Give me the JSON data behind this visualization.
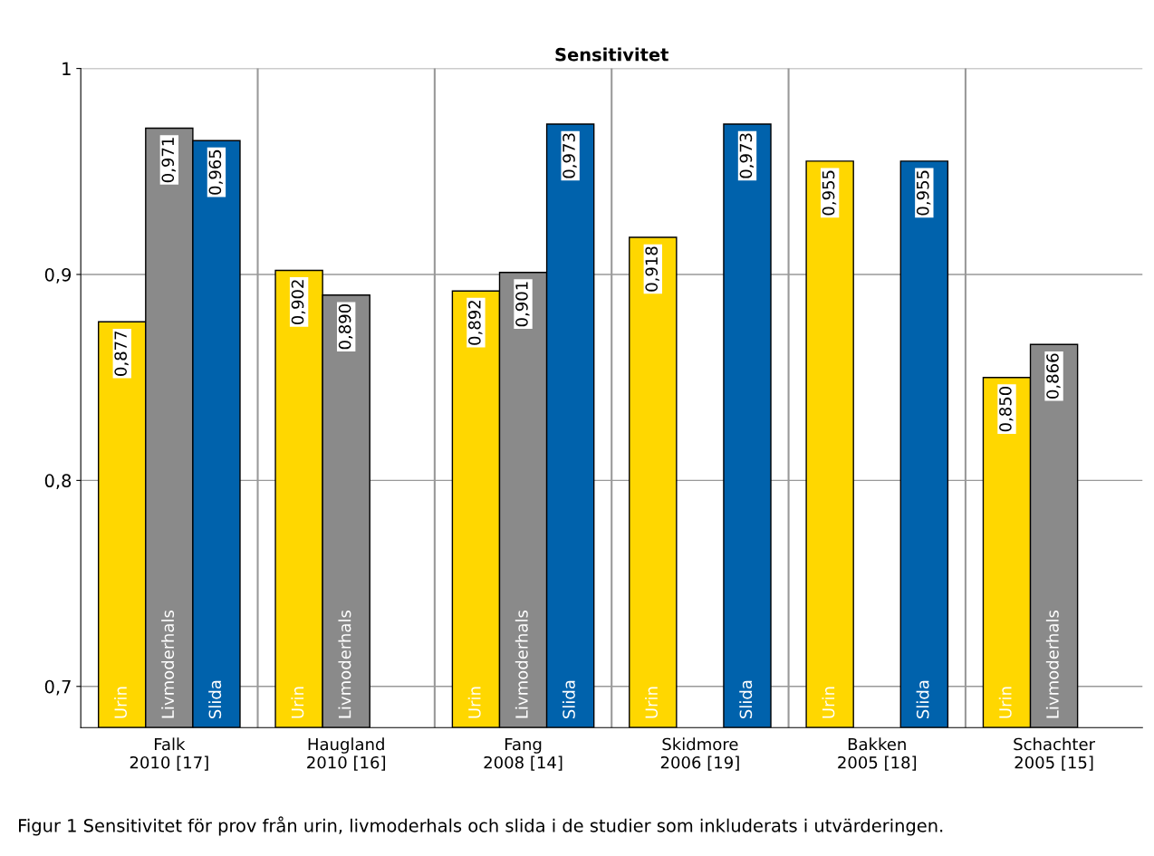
{
  "chart_data": {
    "type": "bar",
    "title": "Sensitivitet",
    "categories": [
      "Falk\n2010 [17]",
      "Haugland\n2010 [16]",
      "Fang\n2008 [14]",
      "Skidmore\n2006 [19]",
      "Bakken\n2005 [18]",
      "Schachter\n2005 [15]"
    ],
    "series": [
      {
        "name": "Urin",
        "color": "#ffd700",
        "values": [
          0.877,
          0.902,
          0.892,
          0.918,
          0.955,
          0.85
        ],
        "value_labels": [
          "0,877",
          "0,902",
          "0,892",
          "0,918",
          "0,955",
          "0,850"
        ]
      },
      {
        "name": "Livmoderhals",
        "color": "#8a8a8a",
        "values": [
          0.971,
          0.89,
          0.901,
          null,
          null,
          0.866
        ],
        "value_labels": [
          "0,971",
          "0,890",
          "0,901",
          null,
          null,
          "0,866"
        ]
      },
      {
        "name": "Slida",
        "color": "#0062ac",
        "values": [
          0.965,
          null,
          0.973,
          0.973,
          0.955,
          null
        ],
        "value_labels": [
          "0,965",
          null,
          "0,973",
          "0,973",
          "0,955",
          null
        ]
      }
    ],
    "ylim": [
      0.68,
      1
    ],
    "yticks": [
      {
        "value": 0.7,
        "label": "0,7"
      },
      {
        "value": 0.8,
        "label": "0,8"
      },
      {
        "value": 0.9,
        "label": "0,9"
      },
      {
        "value": 1,
        "label": "1"
      }
    ],
    "grid": true,
    "annotations": [
      "Figur 1 Sensitivitet för prov från urin, livmoderhals och slida i de studier som inkluderats i utvärderingen."
    ]
  }
}
